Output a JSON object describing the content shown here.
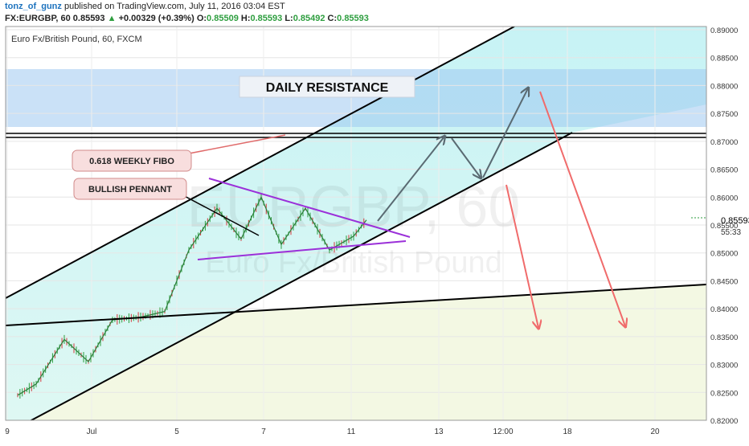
{
  "header": {
    "author": "tonz_of_gunz",
    "published_text": "published on TradingView.com, July 11, 2016 03:04 EST",
    "symbol": "FX:EURGBP, 60",
    "last": "0.85593",
    "change_arrow": "▲",
    "change": "+0.00329 (+0.39%)",
    "open_label": "O:",
    "open": "0.85509",
    "high_label": "H:",
    "high": "0.85593",
    "low_label": "L:",
    "low": "0.85492",
    "close_label": "C:",
    "close": "0.85593"
  },
  "chart_data": {
    "type": "line",
    "title": "Euro Fx/British Pound, 60, FXCM",
    "watermark": {
      "symbol": "EURGBP, 60",
      "name": "Euro Fx/British Pound"
    },
    "y_ticks": [
      "0.89000",
      "0.88500",
      "0.88000",
      "0.87500",
      "0.87000",
      "0.86500",
      "0.86000",
      "0.85500",
      "0.85000",
      "0.84500",
      "0.84000",
      "0.83500",
      "0.83000",
      "0.82500",
      "0.82000"
    ],
    "ylim": [
      0.8195,
      0.8905
    ],
    "x_ticks": [
      "9",
      "Jul",
      "5",
      "7",
      "11",
      "13",
      "12:00",
      "18",
      "20"
    ],
    "current_price": {
      "value": "0.85593",
      "countdown": "55:33"
    },
    "colors": {
      "bull": "#2e9e3f",
      "bear": "#d2383a",
      "channel": "#000000",
      "pennant": "#9b30d9",
      "arrow_up": "#5a6a72",
      "arrow_down": "#f06b6b",
      "resistance": "#9fc8f0"
    },
    "price_series": {
      "x": [
        "Jun 29",
        "Jun 30",
        "Jul 1",
        "Jul 1",
        "Jul 4",
        "Jul 5",
        "Jul 5",
        "Jul 6",
        "Jul 6",
        "Jul 7",
        "Jul 7",
        "Jul 8",
        "Jul 8",
        "Jul 8",
        "Jul 11",
        "Jul 11"
      ],
      "y": [
        0.8245,
        0.8265,
        0.8345,
        0.8305,
        0.838,
        0.8385,
        0.8395,
        0.8505,
        0.858,
        0.8525,
        0.86,
        0.8515,
        0.858,
        0.8505,
        0.853,
        0.8559
      ]
    },
    "annotations": {
      "daily_resistance": "DAILY RESISTANCE",
      "weekly_fibo": "0.618 WEEKLY FIBO",
      "bullish_pennant": "BULLISH PENNANT"
    }
  }
}
